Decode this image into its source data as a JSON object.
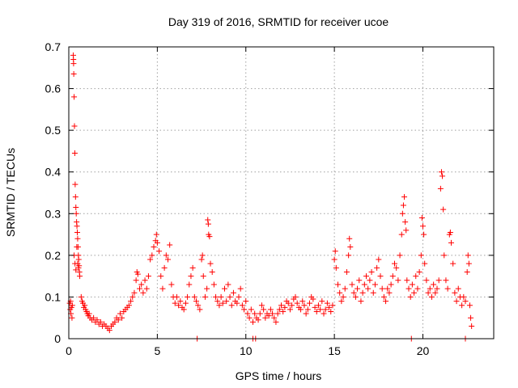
{
  "chart_data": {
    "type": "scatter",
    "title": "Day 319 of 2016, SRMTID for receiver ucoe",
    "xlabel": "GPS time / hours",
    "ylabel": "SRMTID / TECUs",
    "xlim": [
      0,
      24
    ],
    "ylim": [
      0,
      0.7
    ],
    "xticks": [
      0,
      5,
      10,
      15,
      20
    ],
    "yticks": [
      0,
      0.1,
      0.2,
      0.3,
      0.4,
      0.5,
      0.6,
      0.7
    ],
    "grid": true,
    "marker": "+",
    "color": "#ff0000",
    "series": [
      {
        "name": "SRMTID",
        "points": [
          [
            0.05,
            0.085
          ],
          [
            0.08,
            0.07
          ],
          [
            0.1,
            0.09
          ],
          [
            0.12,
            0.06
          ],
          [
            0.15,
            0.075
          ],
          [
            0.18,
            0.05
          ],
          [
            0.2,
            0.08
          ],
          [
            0.25,
            0.68
          ],
          [
            0.26,
            0.67
          ],
          [
            0.27,
            0.66
          ],
          [
            0.28,
            0.635
          ],
          [
            0.3,
            0.58
          ],
          [
            0.32,
            0.51
          ],
          [
            0.34,
            0.445
          ],
          [
            0.36,
            0.37
          ],
          [
            0.38,
            0.34
          ],
          [
            0.4,
            0.315
          ],
          [
            0.42,
            0.3
          ],
          [
            0.44,
            0.28
          ],
          [
            0.46,
            0.27
          ],
          [
            0.48,
            0.255
          ],
          [
            0.5,
            0.24
          ],
          [
            0.52,
            0.22
          ],
          [
            0.54,
            0.2
          ],
          [
            0.56,
            0.19
          ],
          [
            0.58,
            0.175
          ],
          [
            0.6,
            0.16
          ],
          [
            0.62,
            0.15
          ],
          [
            0.3,
            0.2
          ],
          [
            0.35,
            0.18
          ],
          [
            0.4,
            0.165
          ],
          [
            0.45,
            0.22
          ],
          [
            0.5,
            0.18
          ],
          [
            0.55,
            0.17
          ],
          [
            0.7,
            0.1
          ],
          [
            0.75,
            0.09
          ],
          [
            0.8,
            0.085
          ],
          [
            0.85,
            0.075
          ],
          [
            0.9,
            0.08
          ],
          [
            0.95,
            0.07
          ],
          [
            1.0,
            0.065
          ],
          [
            1.05,
            0.06
          ],
          [
            1.1,
            0.055
          ],
          [
            1.15,
            0.06
          ],
          [
            1.2,
            0.05
          ],
          [
            1.3,
            0.045
          ],
          [
            1.4,
            0.05
          ],
          [
            1.5,
            0.04
          ],
          [
            1.6,
            0.045
          ],
          [
            1.7,
            0.035
          ],
          [
            1.8,
            0.04
          ],
          [
            1.9,
            0.03
          ],
          [
            2.0,
            0.035
          ],
          [
            2.1,
            0.03
          ],
          [
            2.2,
            0.025
          ],
          [
            2.3,
            0.02
          ],
          [
            2.4,
            0.03
          ],
          [
            2.5,
            0.035
          ],
          [
            2.6,
            0.04
          ],
          [
            2.7,
            0.05
          ],
          [
            2.8,
            0.045
          ],
          [
            2.9,
            0.06
          ],
          [
            3.0,
            0.05
          ],
          [
            3.1,
            0.065
          ],
          [
            3.2,
            0.07
          ],
          [
            3.3,
            0.075
          ],
          [
            3.4,
            0.08
          ],
          [
            3.5,
            0.09
          ],
          [
            3.6,
            0.1
          ],
          [
            3.7,
            0.11
          ],
          [
            3.8,
            0.14
          ],
          [
            3.85,
            0.16
          ],
          [
            3.9,
            0.155
          ],
          [
            4.0,
            0.12
          ],
          [
            4.1,
            0.13
          ],
          [
            4.2,
            0.11
          ],
          [
            4.3,
            0.14
          ],
          [
            4.4,
            0.12
          ],
          [
            4.5,
            0.15
          ],
          [
            4.6,
            0.19
          ],
          [
            4.7,
            0.2
          ],
          [
            4.8,
            0.22
          ],
          [
            4.9,
            0.235
          ],
          [
            4.95,
            0.25
          ],
          [
            5.0,
            0.23
          ],
          [
            5.1,
            0.21
          ],
          [
            5.2,
            0.15
          ],
          [
            5.3,
            0.12
          ],
          [
            5.4,
            0.17
          ],
          [
            5.5,
            0.2
          ],
          [
            5.6,
            0.19
          ],
          [
            5.7,
            0.225
          ],
          [
            5.8,
            0.13
          ],
          [
            5.9,
            0.1
          ],
          [
            6.0,
            0.085
          ],
          [
            6.1,
            0.1
          ],
          [
            6.2,
            0.08
          ],
          [
            6.3,
            0.09
          ],
          [
            6.4,
            0.075
          ],
          [
            6.5,
            0.07
          ],
          [
            6.6,
            0.085
          ],
          [
            6.7,
            0.1
          ],
          [
            6.8,
            0.13
          ],
          [
            6.9,
            0.15
          ],
          [
            7.0,
            0.17
          ],
          [
            7.1,
            0.1
          ],
          [
            7.2,
            0.09
          ],
          [
            7.3,
            0.08
          ],
          [
            7.4,
            0.07
          ],
          [
            7.5,
            0.19
          ],
          [
            7.55,
            0.2
          ],
          [
            7.6,
            0.15
          ],
          [
            7.7,
            0.1
          ],
          [
            7.8,
            0.12
          ],
          [
            7.85,
            0.285
          ],
          [
            7.88,
            0.275
          ],
          [
            7.9,
            0.25
          ],
          [
            7.95,
            0.245
          ],
          [
            8.0,
            0.18
          ],
          [
            8.1,
            0.16
          ],
          [
            8.2,
            0.13
          ],
          [
            8.3,
            0.1
          ],
          [
            8.4,
            0.09
          ],
          [
            8.5,
            0.08
          ],
          [
            8.6,
            0.1
          ],
          [
            8.7,
            0.085
          ],
          [
            8.8,
            0.12
          ],
          [
            8.9,
            0.09
          ],
          [
            9.0,
            0.13
          ],
          [
            9.1,
            0.1
          ],
          [
            9.2,
            0.08
          ],
          [
            9.3,
            0.11
          ],
          [
            9.4,
            0.09
          ],
          [
            9.5,
            0.085
          ],
          [
            9.6,
            0.1
          ],
          [
            9.7,
            0.12
          ],
          [
            9.8,
            0.08
          ],
          [
            9.9,
            0.07
          ],
          [
            10.0,
            0.09
          ],
          [
            10.1,
            0.06
          ],
          [
            10.2,
            0.05
          ],
          [
            10.3,
            0.07
          ],
          [
            10.4,
            0.04
          ],
          [
            10.5,
            0.06
          ],
          [
            10.6,
            0.05
          ],
          [
            10.7,
            0.045
          ],
          [
            10.8,
            0.06
          ],
          [
            10.9,
            0.08
          ],
          [
            11.0,
            0.07
          ],
          [
            11.1,
            0.05
          ],
          [
            11.2,
            0.06
          ],
          [
            11.3,
            0.055
          ],
          [
            11.4,
            0.07
          ],
          [
            11.5,
            0.06
          ],
          [
            11.6,
            0.05
          ],
          [
            11.7,
            0.04
          ],
          [
            11.8,
            0.06
          ],
          [
            11.9,
            0.07
          ],
          [
            12.0,
            0.08
          ],
          [
            12.1,
            0.065
          ],
          [
            12.2,
            0.075
          ],
          [
            12.3,
            0.09
          ],
          [
            12.4,
            0.085
          ],
          [
            12.5,
            0.07
          ],
          [
            12.6,
            0.08
          ],
          [
            12.7,
            0.095
          ],
          [
            12.8,
            0.1
          ],
          [
            12.9,
            0.085
          ],
          [
            13.0,
            0.075
          ],
          [
            13.1,
            0.07
          ],
          [
            13.2,
            0.09
          ],
          [
            13.3,
            0.08
          ],
          [
            13.4,
            0.06
          ],
          [
            13.5,
            0.07
          ],
          [
            13.6,
            0.085
          ],
          [
            13.7,
            0.1
          ],
          [
            13.8,
            0.095
          ],
          [
            13.9,
            0.075
          ],
          [
            14.0,
            0.065
          ],
          [
            14.1,
            0.08
          ],
          [
            14.2,
            0.07
          ],
          [
            14.3,
            0.09
          ],
          [
            14.4,
            0.06
          ],
          [
            14.5,
            0.07
          ],
          [
            14.6,
            0.085
          ],
          [
            14.7,
            0.075
          ],
          [
            14.8,
            0.065
          ],
          [
            14.9,
            0.08
          ],
          [
            15.0,
            0.19
          ],
          [
            15.05,
            0.21
          ],
          [
            15.1,
            0.17
          ],
          [
            15.2,
            0.13
          ],
          [
            15.3,
            0.11
          ],
          [
            15.4,
            0.09
          ],
          [
            15.5,
            0.1
          ],
          [
            15.6,
            0.12
          ],
          [
            15.7,
            0.16
          ],
          [
            15.8,
            0.2
          ],
          [
            15.85,
            0.24
          ],
          [
            15.9,
            0.22
          ],
          [
            16.0,
            0.13
          ],
          [
            16.1,
            0.11
          ],
          [
            16.2,
            0.1
          ],
          [
            16.3,
            0.12
          ],
          [
            16.4,
            0.14
          ],
          [
            16.5,
            0.09
          ],
          [
            16.6,
            0.11
          ],
          [
            16.7,
            0.13
          ],
          [
            16.8,
            0.15
          ],
          [
            16.9,
            0.12
          ],
          [
            17.0,
            0.14
          ],
          [
            17.1,
            0.16
          ],
          [
            17.2,
            0.11
          ],
          [
            17.3,
            0.13
          ],
          [
            17.4,
            0.17
          ],
          [
            17.5,
            0.19
          ],
          [
            17.6,
            0.15
          ],
          [
            17.7,
            0.12
          ],
          [
            17.8,
            0.1
          ],
          [
            17.9,
            0.09
          ],
          [
            18.0,
            0.12
          ],
          [
            18.1,
            0.11
          ],
          [
            18.2,
            0.13
          ],
          [
            18.3,
            0.15
          ],
          [
            18.4,
            0.18
          ],
          [
            18.5,
            0.17
          ],
          [
            18.6,
            0.14
          ],
          [
            18.7,
            0.2
          ],
          [
            18.8,
            0.25
          ],
          [
            18.85,
            0.3
          ],
          [
            18.9,
            0.32
          ],
          [
            18.95,
            0.34
          ],
          [
            19.0,
            0.28
          ],
          [
            19.05,
            0.26
          ],
          [
            19.1,
            0.14
          ],
          [
            19.2,
            0.12
          ],
          [
            19.3,
            0.1
          ],
          [
            19.4,
            0.13
          ],
          [
            19.5,
            0.11
          ],
          [
            19.6,
            0.15
          ],
          [
            19.7,
            0.12
          ],
          [
            19.8,
            0.16
          ],
          [
            19.9,
            0.2
          ],
          [
            19.95,
            0.29
          ],
          [
            20.0,
            0.27
          ],
          [
            20.05,
            0.25
          ],
          [
            20.1,
            0.18
          ],
          [
            20.2,
            0.14
          ],
          [
            20.3,
            0.11
          ],
          [
            20.4,
            0.12
          ],
          [
            20.5,
            0.1
          ],
          [
            20.6,
            0.13
          ],
          [
            20.7,
            0.11
          ],
          [
            20.8,
            0.12
          ],
          [
            20.9,
            0.14
          ],
          [
            21.0,
            0.36
          ],
          [
            21.05,
            0.4
          ],
          [
            21.1,
            0.39
          ],
          [
            21.15,
            0.31
          ],
          [
            21.2,
            0.2
          ],
          [
            21.3,
            0.14
          ],
          [
            21.4,
            0.12
          ],
          [
            21.5,
            0.25
          ],
          [
            21.55,
            0.255
          ],
          [
            21.6,
            0.23
          ],
          [
            21.7,
            0.18
          ],
          [
            21.8,
            0.11
          ],
          [
            21.9,
            0.09
          ],
          [
            22.0,
            0.12
          ],
          [
            22.1,
            0.1
          ],
          [
            22.2,
            0.08
          ],
          [
            22.3,
            0.1
          ],
          [
            22.4,
            0.09
          ],
          [
            22.5,
            0.16
          ],
          [
            22.55,
            0.2
          ],
          [
            22.6,
            0.18
          ],
          [
            22.65,
            0.08
          ],
          [
            22.7,
            0.05
          ],
          [
            22.75,
            0.03
          ],
          [
            7.25,
            0.0
          ],
          [
            10.4,
            0.0
          ],
          [
            10.55,
            0.0
          ],
          [
            19.35,
            0.0
          ],
          [
            22.4,
            0.0
          ]
        ]
      }
    ]
  }
}
